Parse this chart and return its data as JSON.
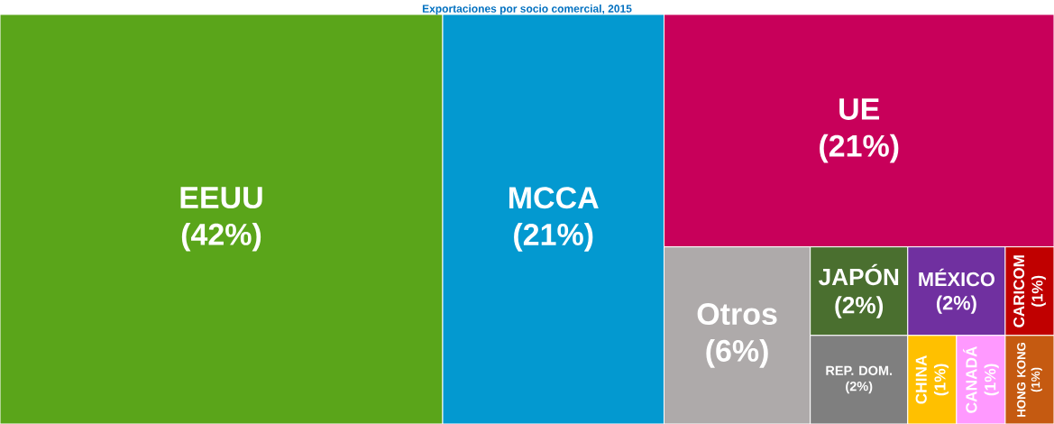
{
  "chart_data": {
    "type": "other",
    "title": "Exportaciones por socio comercial, 2015",
    "categories": [
      "EEUU",
      "MCCA",
      "UE",
      "Otros",
      "JAPÓN",
      "REP. DOM.",
      "MÉXICO",
      "CARICOM",
      "CHINA",
      "CANADÁ",
      "HONG KONG"
    ],
    "values": [
      42,
      21,
      21,
      6,
      2,
      2,
      2,
      1,
      1,
      1,
      1
    ],
    "value_labels": [
      "(42%)",
      "(21%)",
      "(21%)",
      "(6%)",
      "(2%)",
      "(2%)",
      "(2%)",
      "(1%)",
      "(1%)",
      "(1%)",
      "(1%)"
    ],
    "colors": [
      "#5aa51a",
      "#0399d0",
      "#c8005a",
      "#aeaaaa",
      "#4a6f2f",
      "#7f7f7f",
      "#7030a0",
      "#c00000",
      "#ffc000",
      "#ff99ff",
      "#c55a11"
    ]
  }
}
